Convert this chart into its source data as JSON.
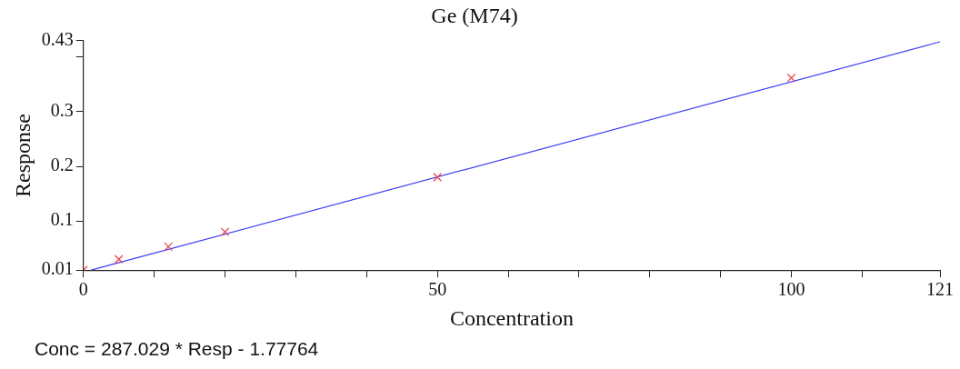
{
  "chart_data": {
    "type": "scatter",
    "title": "Ge (M74)",
    "xlabel": "Concentration",
    "ylabel": "Response",
    "series": [
      {
        "type": "scatter",
        "color": "#e8454a",
        "marker": "cross",
        "x": [
          0,
          5,
          12,
          20,
          50,
          100
        ],
        "values": [
          0.01,
          0.03,
          0.053,
          0.08,
          0.18,
          0.362
        ]
      },
      {
        "type": "line",
        "color": "#3f3ff5",
        "marker": "none",
        "x": [
          1.09,
          121
        ],
        "values": [
          0.01,
          0.428
        ]
      }
    ],
    "xlim": [
      0,
      121
    ],
    "xticks": [
      0,
      {
        "value": 10,
        "label": null
      },
      {
        "value": 20,
        "label": null
      },
      {
        "value": 30,
        "label": null
      },
      {
        "value": 40,
        "label": null
      },
      50,
      {
        "value": 60,
        "label": null
      },
      {
        "value": 70,
        "label": null
      },
      {
        "value": 80,
        "label": null
      },
      {
        "value": 90,
        "label": null
      },
      100,
      {
        "value": 110,
        "label": null
      },
      121
    ],
    "ylim": [
      0.01,
      0.43
    ],
    "yticks": [
      0.01,
      0.1,
      0.2,
      0.3,
      {
        "value": 0.4,
        "label": null
      },
      0.43
    ],
    "grid": false,
    "legend": false,
    "annotations": [
      "Conc = 287.029 * Resp - 1.77764"
    ]
  }
}
